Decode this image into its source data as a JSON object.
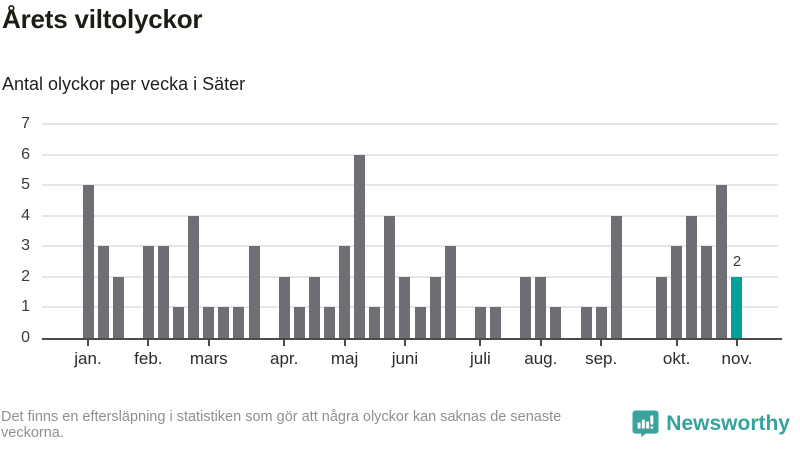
{
  "header": {
    "title": "Årets viltolyckor",
    "subtitle": "Antal olyckor per vecka i Säter"
  },
  "chart_data": {
    "type": "bar",
    "x_unit": "week",
    "values": [
      5,
      3,
      2,
      0,
      3,
      3,
      1,
      4,
      1,
      1,
      1,
      3,
      0,
      2,
      1,
      2,
      1,
      3,
      6,
      1,
      4,
      2,
      1,
      2,
      3,
      0,
      1,
      1,
      0,
      2,
      2,
      1,
      0,
      1,
      1,
      4,
      0,
      0,
      2,
      3,
      4,
      3,
      5,
      2
    ],
    "yticks": [
      0,
      1,
      2,
      3,
      4,
      5,
      6,
      7
    ],
    "ylim": [
      0,
      7
    ],
    "grid": true,
    "months": [
      {
        "label": "jan.",
        "week": 1
      },
      {
        "label": "feb.",
        "week": 5
      },
      {
        "label": "mars",
        "week": 9
      },
      {
        "label": "apr.",
        "week": 14
      },
      {
        "label": "maj",
        "week": 18
      },
      {
        "label": "juni",
        "week": 22
      },
      {
        "label": "juli",
        "week": 27
      },
      {
        "label": "aug.",
        "week": 31
      },
      {
        "label": "sep.",
        "week": 35
      },
      {
        "label": "okt.",
        "week": 40
      },
      {
        "label": "nov.",
        "week": 44
      }
    ],
    "highlight_last": true,
    "highlight_value_label": "2",
    "colors": {
      "bar": "#6f6e74",
      "highlight": "#00a29b",
      "grid": "#e6e6e6",
      "axis": "#4b4b4b"
    }
  },
  "footer": {
    "disclaimer": "Det finns en eftersläpning i statistiken som gör att några olyckor kan saknas de senaste veckorna.",
    "brand": {
      "name": "Newsworthy",
      "color": "#36a29c",
      "icon": "newsworthy-logo-icon"
    }
  }
}
